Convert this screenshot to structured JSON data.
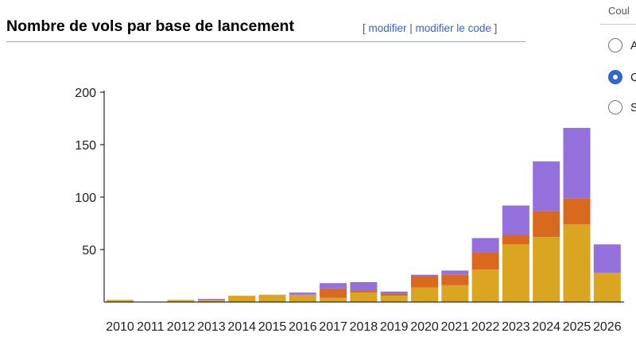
{
  "heading": {
    "title": "Nombre de vols par base de lancement",
    "bracket_open": "[ ",
    "edit_label": "modifier",
    "separator": " | ",
    "edit_code_label": "modifier le code",
    "bracket_close": " ]"
  },
  "side_panel": {
    "title": "Coul",
    "options": [
      {
        "label": "A",
        "checked": false
      },
      {
        "label": "C",
        "checked": true
      },
      {
        "label": "S",
        "checked": false
      }
    ]
  },
  "chart_data": {
    "type": "bar",
    "stacked": true,
    "categories": [
      "2010",
      "2011",
      "2012",
      "2013",
      "2014",
      "2015",
      "2016",
      "2017",
      "2018",
      "2019",
      "2020",
      "2021",
      "2022",
      "2023",
      "2024",
      "2025",
      "2026"
    ],
    "series": [
      {
        "color": "#daa520",
        "values": [
          2,
          0,
          2,
          2,
          6,
          7,
          7,
          4,
          9,
          6,
          14,
          16,
          31,
          55,
          62,
          74,
          28
        ]
      },
      {
        "color": "#d8691f",
        "values": [
          0,
          0,
          0,
          0,
          0,
          0,
          0,
          9,
          2,
          2,
          11,
          10,
          16,
          9,
          25,
          25,
          0
        ]
      },
      {
        "color": "#9370db",
        "values": [
          0,
          0,
          0,
          1,
          0,
          0,
          2,
          5,
          8,
          2,
          1,
          4,
          14,
          28,
          47,
          67,
          27
        ]
      }
    ],
    "y_ticks": [
      50,
      100,
      150,
      200
    ],
    "ylim": [
      0,
      200
    ],
    "grid": false,
    "legend": "none"
  }
}
